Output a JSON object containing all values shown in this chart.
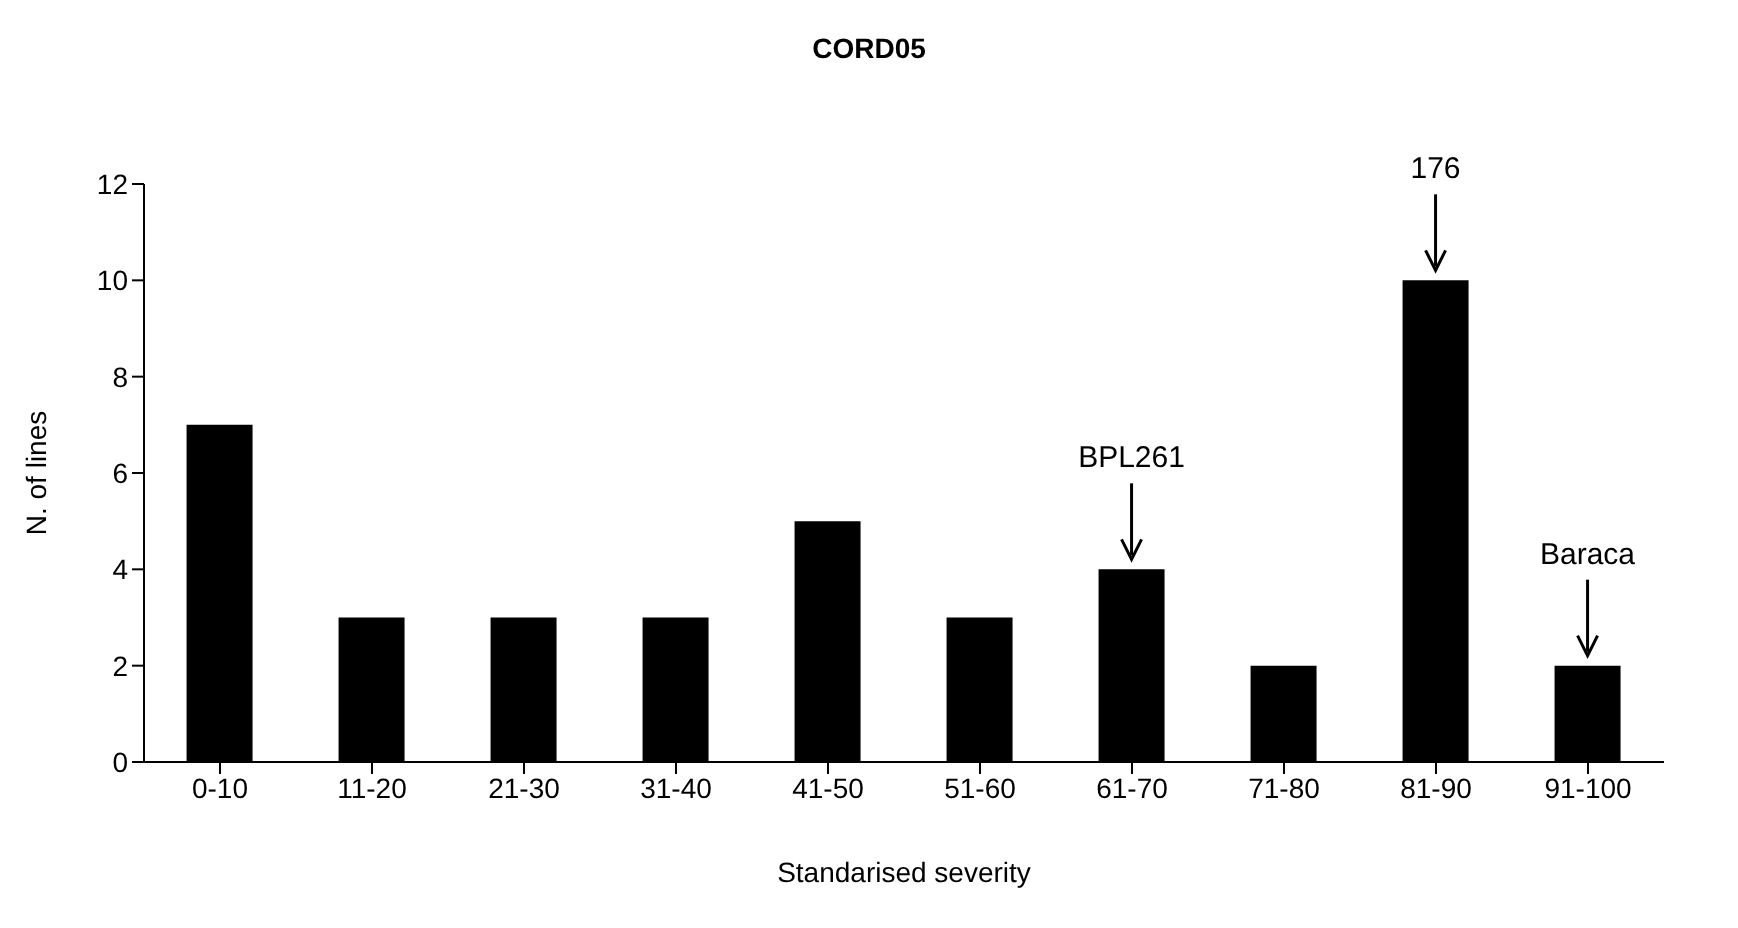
{
  "chart_data": {
    "type": "bar",
    "title": "CORD05",
    "xlabel": "Standarised severity",
    "ylabel": "N. of lines",
    "categories": [
      "0-10",
      "11-20",
      "21-30",
      "31-40",
      "41-50",
      "51-60",
      "61-70",
      "71-80",
      "81-90",
      "91-100"
    ],
    "values": [
      7,
      3,
      3,
      3,
      5,
      3,
      4,
      2,
      10,
      2
    ],
    "color": "#000000",
    "ylim": [
      0,
      12
    ],
    "yticks": [
      0,
      2,
      4,
      6,
      8,
      10,
      12
    ],
    "grid": false,
    "legend": false,
    "annotations": [
      {
        "text": "BPL261",
        "x": "61-70",
        "y": 4
      },
      {
        "text": "176",
        "x": "81-90",
        "y": 10
      },
      {
        "text": "Baraca",
        "x": "91-100",
        "y": 2
      }
    ]
  }
}
